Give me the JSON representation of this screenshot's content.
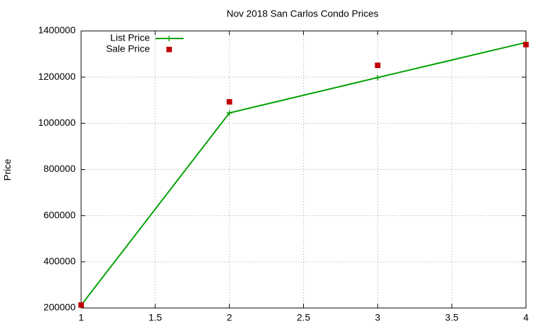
{
  "chart_data": {
    "type": "line",
    "title": "Nov 2018 San Carlos Condo Prices",
    "y_label": "Price",
    "x": [
      1,
      2,
      3,
      4
    ],
    "series": [
      {
        "name": "List Price",
        "color": "#00a000",
        "mode": "lines+markers",
        "values": [
          212000,
          1045000,
          1198000,
          1350000
        ]
      },
      {
        "name": "Sale Price",
        "color": "#c00000",
        "mode": "markers",
        "values": [
          213000,
          1093000,
          1251000,
          1341000
        ]
      }
    ],
    "xlim": [
      1,
      4
    ],
    "xticks": [
      1,
      1.5,
      2,
      2.5,
      3,
      3.5,
      4
    ],
    "ylim": [
      200000,
      1400000
    ],
    "yticks": [
      200000,
      400000,
      600000,
      800000,
      1000000,
      1200000,
      1400000
    ],
    "grid": true,
    "legend": "top-left"
  }
}
